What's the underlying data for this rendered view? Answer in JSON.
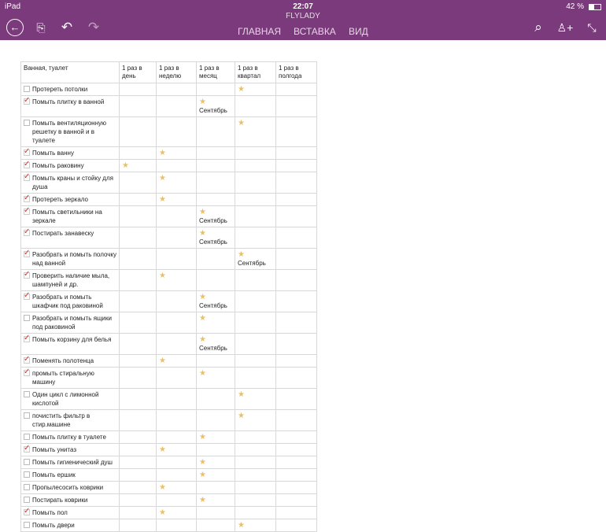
{
  "status": {
    "device": "iPad",
    "time": "22:07",
    "battery": "42 %"
  },
  "app": {
    "title": "FLYLADY",
    "tabs": [
      "ГЛАВНАЯ",
      "ВСТАВКА",
      "ВИД"
    ]
  },
  "table": {
    "headers": [
      "Ванная, туалет",
      "1 раз в день",
      "1 раз в неделю",
      "1 раз в месяц",
      "1 раз в квартал",
      "1 раз в полгода"
    ],
    "rows": [
      {
        "task": "Протереть потолки",
        "checked": false,
        "col": 3,
        "note": ""
      },
      {
        "task": "Помыть плитку в ванной",
        "checked": true,
        "col": 2,
        "note": "Сентябрь"
      },
      {
        "task": "Помыть вентиляционную решетку в ванной и в туалете",
        "checked": false,
        "col": 3,
        "note": ""
      },
      {
        "task": "Помыть ванну",
        "checked": true,
        "col": 1,
        "note": ""
      },
      {
        "task": "Помыть раковину",
        "checked": true,
        "col": 0,
        "note": ""
      },
      {
        "task": "Помыть краны и стойку для душа",
        "checked": true,
        "col": 1,
        "note": ""
      },
      {
        "task": "Протереть зеркало",
        "checked": true,
        "col": 1,
        "note": ""
      },
      {
        "task": "Помыть светильники на зеркале",
        "checked": true,
        "col": 2,
        "note": "Сентябрь"
      },
      {
        "task": "Постирать занавеску",
        "checked": true,
        "col": 2,
        "note": "Сентябрь"
      },
      {
        "task": "Разобрать и помыть полочку над ванной",
        "checked": true,
        "col": 3,
        "note": "Сентябрь"
      },
      {
        "task": "Проверить наличие мыла, шампуней и др.",
        "checked": true,
        "col": 1,
        "note": ""
      },
      {
        "task": "Разобрать и помыть шкафчик под раковиной",
        "checked": true,
        "col": 2,
        "note": "Сентябрь"
      },
      {
        "task": "Разобрать и помыть ящики под раковиной",
        "checked": false,
        "col": 2,
        "note": ""
      },
      {
        "task": "Помыть корзину для белья",
        "checked": true,
        "col": 2,
        "note": "Сентябрь"
      },
      {
        "task": "Поменять полотенца",
        "checked": true,
        "col": 1,
        "note": ""
      },
      {
        "task": " промыть стиральную машину",
        "checked": true,
        "col": 2,
        "note": ""
      },
      {
        "task": "Один цикл с лимонной кислотой",
        "checked": false,
        "col": 3,
        "note": ""
      },
      {
        "task": " почистить фильтр в стир.машине",
        "checked": false,
        "col": 3,
        "note": ""
      },
      {
        "task": "Помыть плитку в туалете",
        "checked": false,
        "col": 2,
        "note": ""
      },
      {
        "task": "Помыть унитаз",
        "checked": true,
        "col": 1,
        "note": ""
      },
      {
        "task": "Помыть гигиенический душ",
        "checked": false,
        "col": 2,
        "note": ""
      },
      {
        "task": "Помыть ершик",
        "checked": false,
        "col": 2,
        "note": ""
      },
      {
        "task": "Пропылесосить коврики",
        "checked": false,
        "col": 1,
        "note": ""
      },
      {
        "task": "Постирать коврики",
        "checked": false,
        "col": 2,
        "note": ""
      },
      {
        "task": "Помыть пол",
        "checked": true,
        "col": 1,
        "note": ""
      },
      {
        "task": "Помыть двери",
        "checked": false,
        "col": 3,
        "note": ""
      }
    ]
  },
  "colors": {
    "toolbar": "#7b3a7b",
    "star": "#e7c06a",
    "check": "#d0342c"
  }
}
